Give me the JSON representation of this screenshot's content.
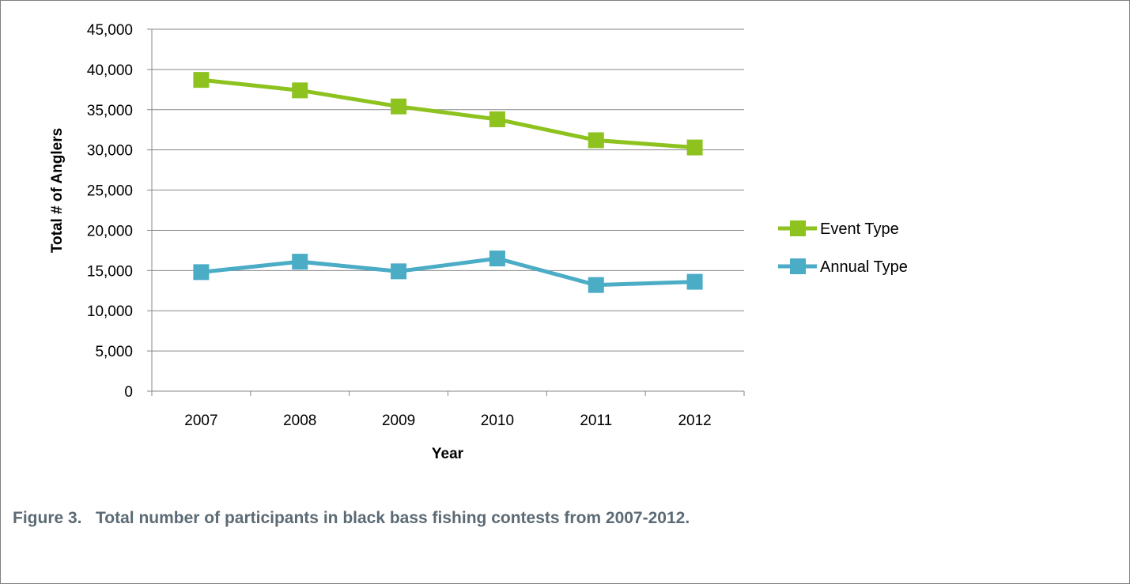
{
  "chart_data": {
    "type": "line",
    "categories": [
      "2007",
      "2008",
      "2009",
      "2010",
      "2011",
      "2012"
    ],
    "series": [
      {
        "name": "Event Type",
        "color": "#8dc21f",
        "values": [
          38700,
          37400,
          35400,
          33800,
          31200,
          30300
        ]
      },
      {
        "name": "Annual Type",
        "color": "#4bacc6",
        "values": [
          14800,
          16100,
          14900,
          16500,
          13200,
          13600
        ]
      }
    ],
    "xlabel": "Year",
    "ylabel": "Total # of Anglers",
    "ylim": [
      0,
      45000
    ],
    "yticks": [
      0,
      5000,
      10000,
      15000,
      20000,
      25000,
      30000,
      35000,
      40000,
      45000
    ],
    "ytick_labels": [
      "0",
      "5,000",
      "10,000",
      "15,000",
      "20,000",
      "25,000",
      "30,000",
      "35,000",
      "40,000",
      "45,000"
    ],
    "grid": "horizontal",
    "legend_position": "right",
    "gridline_color": "#878787"
  },
  "caption": "Figure 3.   Total number of participants in black bass fishing contests from 2007-2012."
}
